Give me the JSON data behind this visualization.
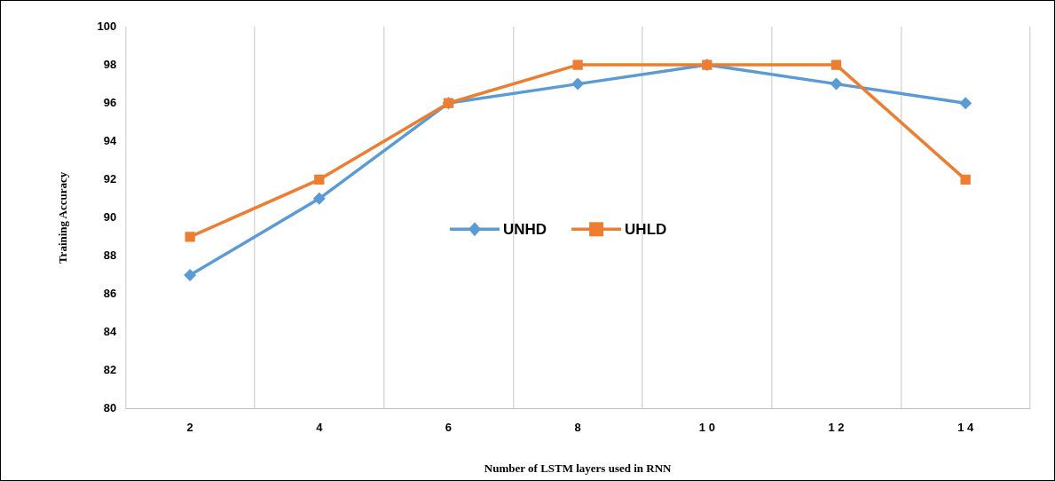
{
  "chart_data": {
    "type": "line",
    "xlabel": "Number of LSTM layers used in RNN",
    "ylabel": "Training Accuracy",
    "categories": [
      "2",
      "4",
      "6",
      "8",
      "1 0",
      "1 2",
      "1 4"
    ],
    "series": [
      {
        "name": "UNHD",
        "color": "#5b9bd5",
        "marker": "diamond",
        "values": [
          87,
          91,
          96,
          97,
          98,
          97,
          96
        ]
      },
      {
        "name": "UHLD",
        "color": "#ed7d31",
        "marker": "square",
        "values": [
          89,
          92,
          96,
          98,
          98,
          98,
          92
        ]
      }
    ],
    "ylim": [
      80,
      100
    ],
    "yticks": [
      80,
      82,
      84,
      86,
      88,
      90,
      92,
      94,
      96,
      98,
      100
    ],
    "grid": "x",
    "legend": "center",
    "line_style": "solid"
  }
}
